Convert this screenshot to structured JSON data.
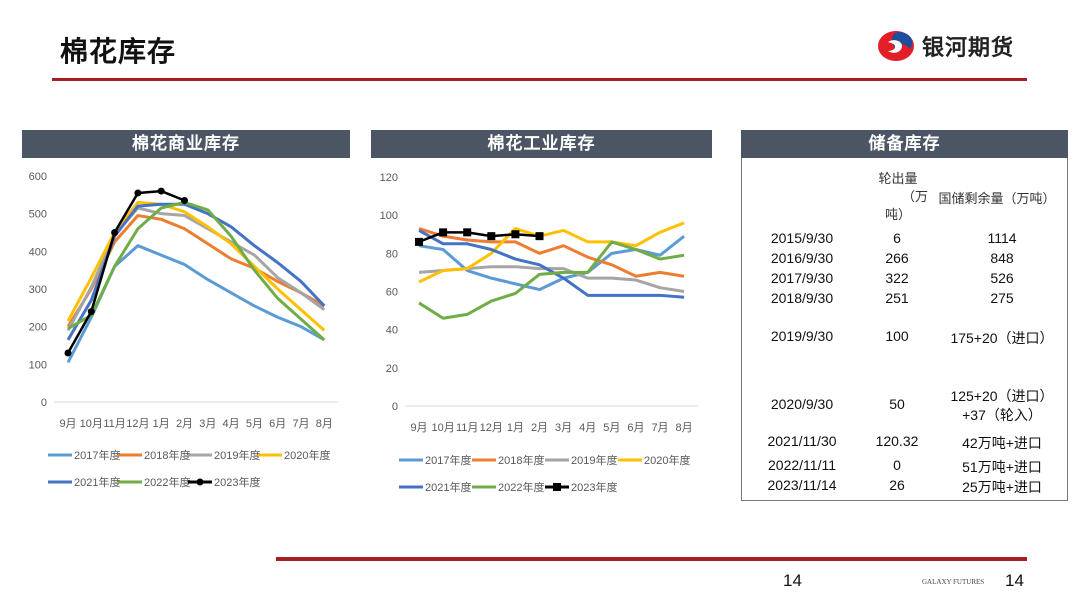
{
  "page": {
    "title": "棉花库存",
    "brand_name": "银河期货",
    "footer_brand": "GALAXY FUTURES",
    "page_number_center": "14",
    "page_number_right": "14"
  },
  "colors": {
    "accent_red": "#a51e22",
    "panel_header": "#4c5563",
    "series": {
      "2017年度": "#5b9bd5",
      "2018年度": "#ed7d31",
      "2019年度": "#a5a5a5",
      "2020年度": "#ffc000",
      "2021年度": "#4472c4",
      "2022年度": "#70ad47",
      "2023年度": "#000000"
    }
  },
  "chart_data": [
    {
      "type": "line",
      "title": "棉花商业库存",
      "xlabel": "",
      "ylabel": "",
      "ylim": [
        0,
        600
      ],
      "yticks": [
        "0",
        "100",
        "200",
        "300",
        "400",
        "500",
        "600"
      ],
      "categories": [
        "9月",
        "10月",
        "11月",
        "12月",
        "1月",
        "2月",
        "3月",
        "4月",
        "5月",
        "6月",
        "7月",
        "8月"
      ],
      "grid": false,
      "legend": "bottom",
      "series": [
        {
          "name": "2017年度",
          "values": [
            105,
            225,
            360,
            415,
            390,
            365,
            325,
            290,
            255,
            225,
            200,
            165
          ]
        },
        {
          "name": "2018年度",
          "values": [
            200,
            300,
            425,
            495,
            485,
            460,
            420,
            380,
            355,
            320,
            290,
            255
          ]
        },
        {
          "name": "2019年度",
          "values": [
            190,
            305,
            445,
            515,
            500,
            495,
            460,
            425,
            390,
            330,
            290,
            245
          ]
        },
        {
          "name": "2020年度",
          "values": [
            215,
            330,
            450,
            530,
            525,
            505,
            465,
            420,
            360,
            300,
            245,
            190
          ]
        },
        {
          "name": "2021年度",
          "values": [
            165,
            270,
            440,
            520,
            525,
            525,
            500,
            465,
            415,
            370,
            320,
            255
          ]
        },
        {
          "name": "2022年度",
          "values": [
            195,
            230,
            360,
            460,
            515,
            530,
            510,
            440,
            350,
            275,
            220,
            165
          ]
        },
        {
          "name": "2023年度",
          "values": [
            130,
            240,
            450,
            555,
            560,
            535,
            null,
            null,
            null,
            null,
            null,
            null
          ]
        }
      ]
    },
    {
      "type": "line",
      "title": "棉花工业库存",
      "xlabel": "",
      "ylabel": "",
      "ylim": [
        0,
        120
      ],
      "yticks": [
        "0",
        "20",
        "40",
        "60",
        "80",
        "100",
        "120"
      ],
      "categories": [
        "9月",
        "10月",
        "11月",
        "12月",
        "1月",
        "2月",
        "3月",
        "4月",
        "5月",
        "6月",
        "7月",
        "8月"
      ],
      "grid": false,
      "legend": "bottom",
      "series": [
        {
          "name": "2017年度",
          "values": [
            84,
            82,
            71,
            67,
            64,
            61,
            67,
            70,
            80,
            82,
            79,
            89
          ]
        },
        {
          "name": "2018年度",
          "values": [
            93,
            89,
            87,
            86,
            86,
            80,
            84,
            78,
            74,
            68,
            70,
            68
          ]
        },
        {
          "name": "2019年度",
          "values": [
            70,
            71,
            72,
            73,
            73,
            72,
            72,
            67,
            67,
            66,
            62,
            60
          ]
        },
        {
          "name": "2020年度",
          "values": [
            65,
            71,
            72,
            80,
            93,
            89,
            92,
            86,
            86,
            84,
            91,
            96
          ]
        },
        {
          "name": "2021年度",
          "values": [
            92,
            85,
            85,
            82,
            77,
            74,
            67,
            58,
            58,
            58,
            58,
            57
          ]
        },
        {
          "name": "2022年度",
          "values": [
            54,
            46,
            48,
            55,
            59,
            69,
            70,
            70,
            86,
            82,
            77,
            79
          ]
        },
        {
          "name": "2023年度",
          "values": [
            86,
            91,
            91,
            89,
            90,
            89,
            null,
            null,
            null,
            null,
            null,
            null
          ]
        }
      ]
    }
  ],
  "reserve": {
    "title": "储备库存",
    "col_headers": {
      "out_line1": "轮出量",
      "out_line2": "（万",
      "out_line3": "吨）",
      "remain": "国储剩余量（万吨）"
    },
    "rows": [
      {
        "date": "2015/9/30",
        "out": "6",
        "remain": "1114"
      },
      {
        "date": "2016/9/30",
        "out": "266",
        "remain": "848"
      },
      {
        "date": "2017/9/30",
        "out": "322",
        "remain": "526"
      },
      {
        "date": "2018/9/30",
        "out": "251",
        "remain": "275"
      },
      {
        "date": "2019/9/30",
        "out": "100",
        "remain": "175+20（进口）"
      },
      {
        "date": "2020/9/30",
        "out": "50",
        "remain": "125+20（进口）",
        "remain2": "+37（轮入）"
      },
      {
        "date": "2021/11/30",
        "out": "120.32",
        "remain": "42万吨+进口"
      },
      {
        "date": "2022/11/11",
        "out": "0",
        "remain": "51万吨+进口"
      },
      {
        "date": "2023/11/14",
        "out": "26",
        "remain": "25万吨+进口"
      }
    ]
  }
}
